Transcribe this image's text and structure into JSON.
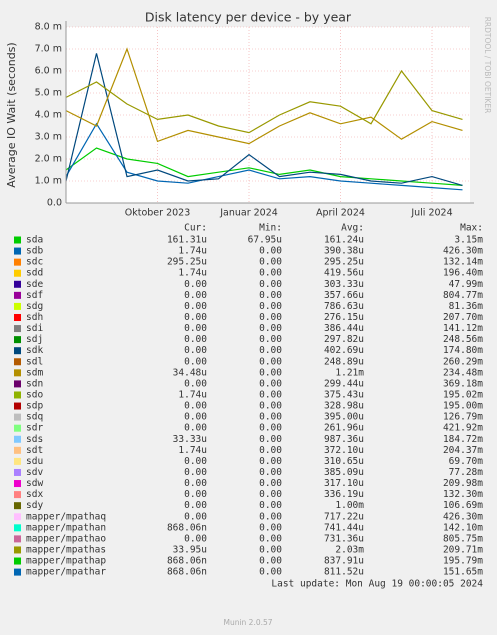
{
  "chart_data": {
    "type": "line",
    "title": "Disk latency per device - by year",
    "y_label": "Average IO Wait (seconds)",
    "watermark": "RRDTOOL / TOBI OETIKER",
    "x": [
      "2023-07",
      "2023-08",
      "2023-09",
      "2023-10",
      "2023-11",
      "2023-12",
      "2024-01",
      "2024-02",
      "2024-03",
      "2024-04",
      "2024-05",
      "2024-06",
      "2024-07",
      "2024-08"
    ],
    "xticks": [
      {
        "value": "2023-10",
        "label": "Oktober 2023"
      },
      {
        "value": "2024-01",
        "label": "Januar 2024"
      },
      {
        "value": "2024-04",
        "label": "April 2024"
      },
      {
        "value": "2024-07",
        "label": "Juli 2024"
      }
    ],
    "ylim": [
      0,
      0.008
    ],
    "yticks": [
      {
        "value": 0,
        "label": "0.0"
      },
      {
        "value": 0.001,
        "label": "1.0 m"
      },
      {
        "value": 0.002,
        "label": "2.0 m"
      },
      {
        "value": 0.003,
        "label": "3.0 m"
      },
      {
        "value": 0.004,
        "label": "4.0 m"
      },
      {
        "value": 0.005,
        "label": "5.0 m"
      },
      {
        "value": 0.006,
        "label": "6.0 m"
      },
      {
        "value": 0.007,
        "label": "7.0 m"
      },
      {
        "value": 0.008,
        "label": "8.0 m"
      }
    ],
    "grid": true,
    "columns": [
      "Cur:",
      "Min:",
      "Avg:",
      "Max:"
    ],
    "series": [
      {
        "name": "sda",
        "color": "#00cc00",
        "stats": [
          "161.31u",
          "67.95u",
          "161.24u",
          "3.15m"
        ],
        "values": [
          0.0015,
          0.0025,
          0.002,
          0.0018,
          0.0012,
          0.0014,
          0.0016,
          0.0013,
          0.0015,
          0.0012,
          0.0011,
          0.001,
          0.0009,
          0.0008
        ]
      },
      {
        "name": "sdb",
        "color": "#0066b3",
        "stats": [
          "1.74u",
          "0.00",
          "390.38u",
          "426.30m"
        ],
        "values": [
          0.0012,
          0.0036,
          0.0014,
          0.001,
          0.0009,
          0.0012,
          0.0015,
          0.0011,
          0.0012,
          0.001,
          0.0009,
          0.0008,
          0.0007,
          0.0006
        ]
      },
      {
        "name": "sdc",
        "color": "#ff8000",
        "stats": [
          "295.25u",
          "0.00",
          "295.25u",
          "132.14m"
        ]
      },
      {
        "name": "sdd",
        "color": "#ffcc00",
        "stats": [
          "1.74u",
          "0.00",
          "419.56u",
          "196.40m"
        ]
      },
      {
        "name": "sde",
        "color": "#330099",
        "stats": [
          "0.00",
          "0.00",
          "303.33u",
          "47.99m"
        ]
      },
      {
        "name": "sdf",
        "color": "#990099",
        "stats": [
          "0.00",
          "0.00",
          "357.66u",
          "804.77m"
        ]
      },
      {
        "name": "sdg",
        "color": "#ccff00",
        "stats": [
          "0.00",
          "0.00",
          "786.63u",
          "81.36m"
        ]
      },
      {
        "name": "sdh",
        "color": "#ff0000",
        "stats": [
          "0.00",
          "0.00",
          "276.15u",
          "207.70m"
        ]
      },
      {
        "name": "sdi",
        "color": "#808080",
        "stats": [
          "0.00",
          "0.00",
          "386.44u",
          "141.12m"
        ]
      },
      {
        "name": "sdj",
        "color": "#008f00",
        "stats": [
          "0.00",
          "0.00",
          "297.82u",
          "248.56m"
        ]
      },
      {
        "name": "sdk",
        "color": "#00487d",
        "stats": [
          "0.00",
          "0.00",
          "402.69u",
          "174.80m"
        ],
        "values": [
          0.001,
          0.0068,
          0.0012,
          0.0015,
          0.001,
          0.0011,
          0.0022,
          0.0012,
          0.0014,
          0.0013,
          0.001,
          0.0009,
          0.0012,
          0.0008
        ]
      },
      {
        "name": "sdl",
        "color": "#b35a00",
        "stats": [
          "0.00",
          "0.00",
          "248.89u",
          "260.29m"
        ]
      },
      {
        "name": "sdm",
        "color": "#b38f00",
        "stats": [
          "34.48u",
          "0.00",
          "1.21m",
          "234.48m"
        ],
        "values": [
          0.0042,
          0.0035,
          0.007,
          0.0028,
          0.0033,
          0.003,
          0.0027,
          0.0035,
          0.0041,
          0.0036,
          0.0039,
          0.0029,
          0.0037,
          0.0033
        ]
      },
      {
        "name": "sdn",
        "color": "#6b006b",
        "stats": [
          "0.00",
          "0.00",
          "299.44u",
          "369.18m"
        ]
      },
      {
        "name": "sdo",
        "color": "#8fb300",
        "stats": [
          "1.74u",
          "0.00",
          "375.43u",
          "195.02m"
        ]
      },
      {
        "name": "sdp",
        "color": "#b30000",
        "stats": [
          "0.00",
          "0.00",
          "328.98u",
          "195.00m"
        ]
      },
      {
        "name": "sdq",
        "color": "#bebebe",
        "stats": [
          "0.00",
          "0.00",
          "395.00u",
          "126.79m"
        ]
      },
      {
        "name": "sdr",
        "color": "#80ff80",
        "stats": [
          "0.00",
          "0.00",
          "261.96u",
          "421.92m"
        ]
      },
      {
        "name": "sds",
        "color": "#80c9ff",
        "stats": [
          "33.33u",
          "0.00",
          "987.36u",
          "184.72m"
        ]
      },
      {
        "name": "sdt",
        "color": "#ffc080",
        "stats": [
          "1.74u",
          "0.00",
          "372.10u",
          "204.37m"
        ]
      },
      {
        "name": "sdu",
        "color": "#ffe680",
        "stats": [
          "0.00",
          "0.00",
          "310.65u",
          "69.70m"
        ]
      },
      {
        "name": "sdv",
        "color": "#aa80ff",
        "stats": [
          "0.00",
          "0.00",
          "385.09u",
          "77.28m"
        ]
      },
      {
        "name": "sdw",
        "color": "#ee00cc",
        "stats": [
          "0.00",
          "0.00",
          "317.10u",
          "209.98m"
        ]
      },
      {
        "name": "sdx",
        "color": "#ff8080",
        "stats": [
          "0.00",
          "0.00",
          "336.19u",
          "132.30m"
        ]
      },
      {
        "name": "sdy",
        "color": "#666600",
        "stats": [
          "0.00",
          "0.00",
          "1.00m",
          "106.69m"
        ]
      },
      {
        "name": "mapper/mpathaq",
        "color": "#ffbfff",
        "stats": [
          "0.00",
          "0.00",
          "717.22u",
          "426.30m"
        ]
      },
      {
        "name": "mapper/mpathan",
        "color": "#00ffcc",
        "stats": [
          "868.06n",
          "0.00",
          "741.44u",
          "142.10m"
        ]
      },
      {
        "name": "mapper/mpathao",
        "color": "#cc6699",
        "stats": [
          "0.00",
          "0.00",
          "731.36u",
          "805.75m"
        ]
      },
      {
        "name": "mapper/mpathas",
        "color": "#999900",
        "stats": [
          "33.95u",
          "0.00",
          "2.03m",
          "209.71m"
        ],
        "values": [
          0.0048,
          0.0055,
          0.0045,
          0.0038,
          0.004,
          0.0035,
          0.0032,
          0.004,
          0.0046,
          0.0044,
          0.0036,
          0.006,
          0.0042,
          0.0038
        ]
      },
      {
        "name": "mapper/mpathap",
        "color": "#00cc00",
        "stats": [
          "868.06n",
          "0.00",
          "837.91u",
          "195.79m"
        ]
      },
      {
        "name": "mapper/mpathar",
        "color": "#0066b3",
        "stats": [
          "868.06n",
          "0.00",
          "811.52u",
          "151.65m"
        ]
      }
    ],
    "last_update": "Last update: Mon Aug 19 00:00:05 2024",
    "footer": "Munin 2.0.57"
  }
}
